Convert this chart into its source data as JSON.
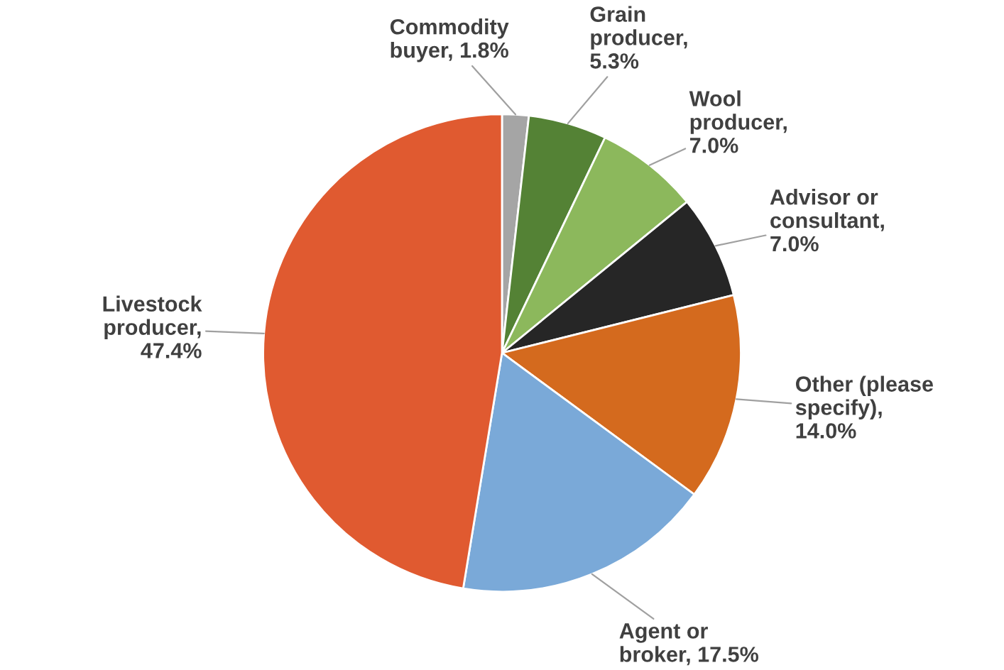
{
  "chart_data": {
    "type": "pie",
    "categories": [
      "Commodity\nbuyer, 1.8%",
      "Grain\nproducer,\n5.3%",
      "Wool\nproducer,\n7.0%",
      "Advisor or\nconsultant,\n7.0%",
      "Other (please\nspecify),\n14.0%",
      "Agent or\nbroker, 17.5%",
      "Livestock\nproducer,\n47.4%"
    ],
    "values": [
      1.8,
      5.3,
      7.0,
      7.0,
      14.0,
      17.5,
      47.4
    ],
    "colors": [
      "#a5a5a5",
      "#548235",
      "#8cb85c",
      "#262626",
      "#d46a1e",
      "#7aa9d8",
      "#e05a30"
    ]
  }
}
